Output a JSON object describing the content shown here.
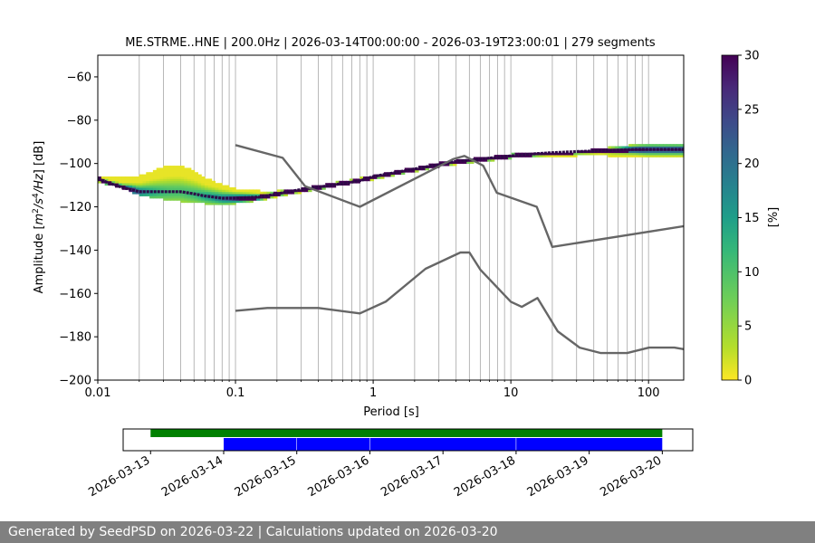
{
  "chart_data": [
    {
      "type": "heatmap",
      "title": "ME.STRME..HNE | 200.0Hz | 2026-03-14T00:00:00 - 2026-03-19T23:00:01 | 279 segments",
      "xlabel": "Period [s]",
      "ylabel_prefix": "Amplitude [",
      "ylabel_math": {
        "m": "m",
        "e1": "2",
        "s": "/s",
        "e2": "4",
        "tail": "/Hz"
      },
      "ylabel_suffix": "] [dB]",
      "x_scale": "log",
      "xlim": [
        0.01,
        180
      ],
      "ylim": [
        -200,
        -50
      ],
      "x_ticks": [
        {
          "value": 0.01,
          "label": "0.01"
        },
        {
          "value": 0.1,
          "label": "0.1"
        },
        {
          "value": 1,
          "label": "1"
        },
        {
          "value": 10,
          "label": "10"
        },
        {
          "value": 100,
          "label": "100"
        }
      ],
      "y_ticks": [
        {
          "value": -60,
          "label": "−60"
        },
        {
          "value": -80,
          "label": "−80"
        },
        {
          "value": -100,
          "label": "−100"
        },
        {
          "value": -120,
          "label": "−120"
        },
        {
          "value": -140,
          "label": "−140"
        },
        {
          "value": -160,
          "label": "−160"
        },
        {
          "value": -180,
          "label": "−180"
        },
        {
          "value": -200,
          "label": "−200"
        }
      ],
      "grid": "vertical minor and major on x",
      "colorbar": {
        "label": "[%]",
        "range": [
          0,
          30
        ],
        "colormap": "viridis_r",
        "ticks": [
          {
            "value": 0,
            "label": "0"
          },
          {
            "value": 5,
            "label": "5"
          },
          {
            "value": 10,
            "label": "10"
          },
          {
            "value": 15,
            "label": "15"
          },
          {
            "value": 20,
            "label": "20"
          },
          {
            "value": 25,
            "label": "25"
          },
          {
            "value": 30,
            "label": "30"
          }
        ]
      },
      "psd_mode": {
        "x": [
          0.01,
          0.012,
          0.015,
          0.02,
          0.025,
          0.03,
          0.04,
          0.05,
          0.06,
          0.08,
          0.1,
          0.15,
          0.2,
          0.3,
          0.5,
          0.8,
          1,
          1.5,
          2,
          3,
          4,
          5,
          7,
          10,
          15,
          20,
          30,
          50,
          80,
          120,
          180
        ],
        "y": [
          -107,
          -109,
          -111,
          -113,
          -113,
          -113,
          -113,
          -114,
          -115,
          -116,
          -116,
          -115.5,
          -114,
          -112,
          -110,
          -108,
          -106,
          -104,
          -102.5,
          -100.5,
          -99,
          -98.5,
          -97.5,
          -96.5,
          -95.5,
          -95,
          -94.5,
          -94,
          -93.5,
          -93.5,
          -93.5
        ]
      },
      "psd_spread": {
        "x": [
          0.01,
          0.015,
          0.02,
          0.025,
          0.03,
          0.035,
          0.04,
          0.05,
          0.06,
          0.08,
          0.1,
          0.15,
          0.2,
          0.3,
          1,
          3,
          10,
          30,
          50,
          100,
          180
        ],
        "upper": [
          -106,
          -107,
          -106,
          -104,
          -102,
          -101,
          -101.5,
          -103.5,
          -107,
          -110,
          -112,
          -113,
          -113,
          -112,
          -106,
          -100,
          -96,
          -95,
          -93,
          -91,
          -91
        ],
        "lower": [
          -108,
          -111,
          -114,
          -115.5,
          -116,
          -116.5,
          -117,
          -117.5,
          -118,
          -118.5,
          -118,
          -116.5,
          -115,
          -113,
          -107,
          -101,
          -97,
          -96,
          -96,
          -97,
          -97
        ]
      },
      "nhnm": {
        "x": [
          0.1,
          0.22,
          0.32,
          0.8,
          3.8,
          4.6,
          6.3,
          7.9,
          15.4,
          20,
          354.8
        ],
        "y": [
          -91.5,
          -97.4,
          -110.5,
          -120,
          -98,
          -96.5,
          -101,
          -113.5,
          -120,
          -138.5,
          -126
        ]
      },
      "nlnm": {
        "x": [
          0.1,
          0.17,
          0.4,
          0.8,
          1.24,
          2.4,
          4.3,
          5,
          6,
          10,
          12,
          15.6,
          21.9,
          31.6,
          45,
          70,
          101,
          154,
          180
        ],
        "y": [
          -168,
          -166.7,
          -166.7,
          -169.2,
          -163.7,
          -148.6,
          -141.1,
          -141.1,
          -149,
          -163.8,
          -166.2,
          -162.1,
          -177.5,
          -185,
          -187.5,
          -187.5,
          -185,
          -185,
          -185.7
        ]
      }
    },
    {
      "type": "timeline",
      "x_ticks": [
        "2026-03-13",
        "2026-03-14",
        "2026-03-15",
        "2026-03-16",
        "2026-03-17",
        "2026-03-18",
        "2026-03-19",
        "2026-03-20"
      ],
      "xlim": [
        "2026-03-12T15:00",
        "2026-03-20T10:00"
      ],
      "green_span": [
        "2026-03-13T00:00",
        "2026-03-20T00:00"
      ],
      "blue_segments": [
        [
          "2026-03-14T00:00",
          "2026-03-14T23:55"
        ],
        [
          "2026-03-15T00:05",
          "2026-03-15T23:55"
        ],
        [
          "2026-03-16T00:05",
          "2026-03-17T23:55"
        ],
        [
          "2026-03-18T00:05",
          "2026-03-19T23:59"
        ]
      ],
      "colors": {
        "green": "#008000",
        "blue": "#0000ff"
      }
    }
  ],
  "colors": {
    "norm_lines": "#666666",
    "grid": "#b0b0b0",
    "footer_bg": "#808080"
  },
  "footer": {
    "text": "Generated by SeedPSD on 2026-03-22 | Calculations updated on 2026-03-20"
  }
}
